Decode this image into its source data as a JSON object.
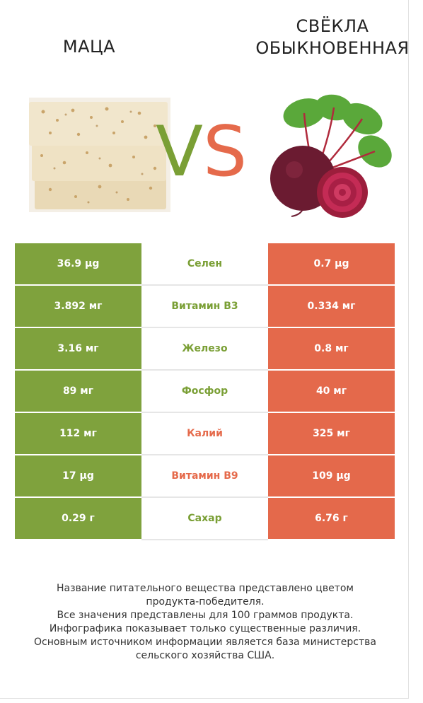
{
  "header": {
    "left_title": "МАЦА",
    "right_title_line1": "СВЁКЛА",
    "right_title_line2": "ОБЫКНОВЕННАЯ",
    "vs_v": "V",
    "vs_s": "S"
  },
  "colors": {
    "left": "#7fa23d",
    "right": "#e4694b"
  },
  "rows": [
    {
      "left": "36.9 µg",
      "name": "Селен",
      "right": "0.7 µg",
      "winner": "left"
    },
    {
      "left": "3.892 мг",
      "name": "Витамин B3",
      "right": "0.334 мг",
      "winner": "left"
    },
    {
      "left": "3.16 мг",
      "name": "Железо",
      "right": "0.8 мг",
      "winner": "left"
    },
    {
      "left": "89 мг",
      "name": "Фосфор",
      "right": "40 мг",
      "winner": "left"
    },
    {
      "left": "112 мг",
      "name": "Калий",
      "right": "325 мг",
      "winner": "right"
    },
    {
      "left": "17 µg",
      "name": "Витамин B9",
      "right": "109 µg",
      "winner": "right"
    },
    {
      "left": "0.29 г",
      "name": "Сахар",
      "right": "6.76 г",
      "winner": "left"
    }
  ],
  "footer": {
    "line1": "Название питательного вещества представлено цветом",
    "line2": "продукта-победителя.",
    "line3": "Все значения представлены для 100 граммов продукта.",
    "line4": "Инфографика показывает только существенные различия.",
    "line5": "Основным источником информации является база министерства",
    "line6": "сельского хозяйства США."
  }
}
